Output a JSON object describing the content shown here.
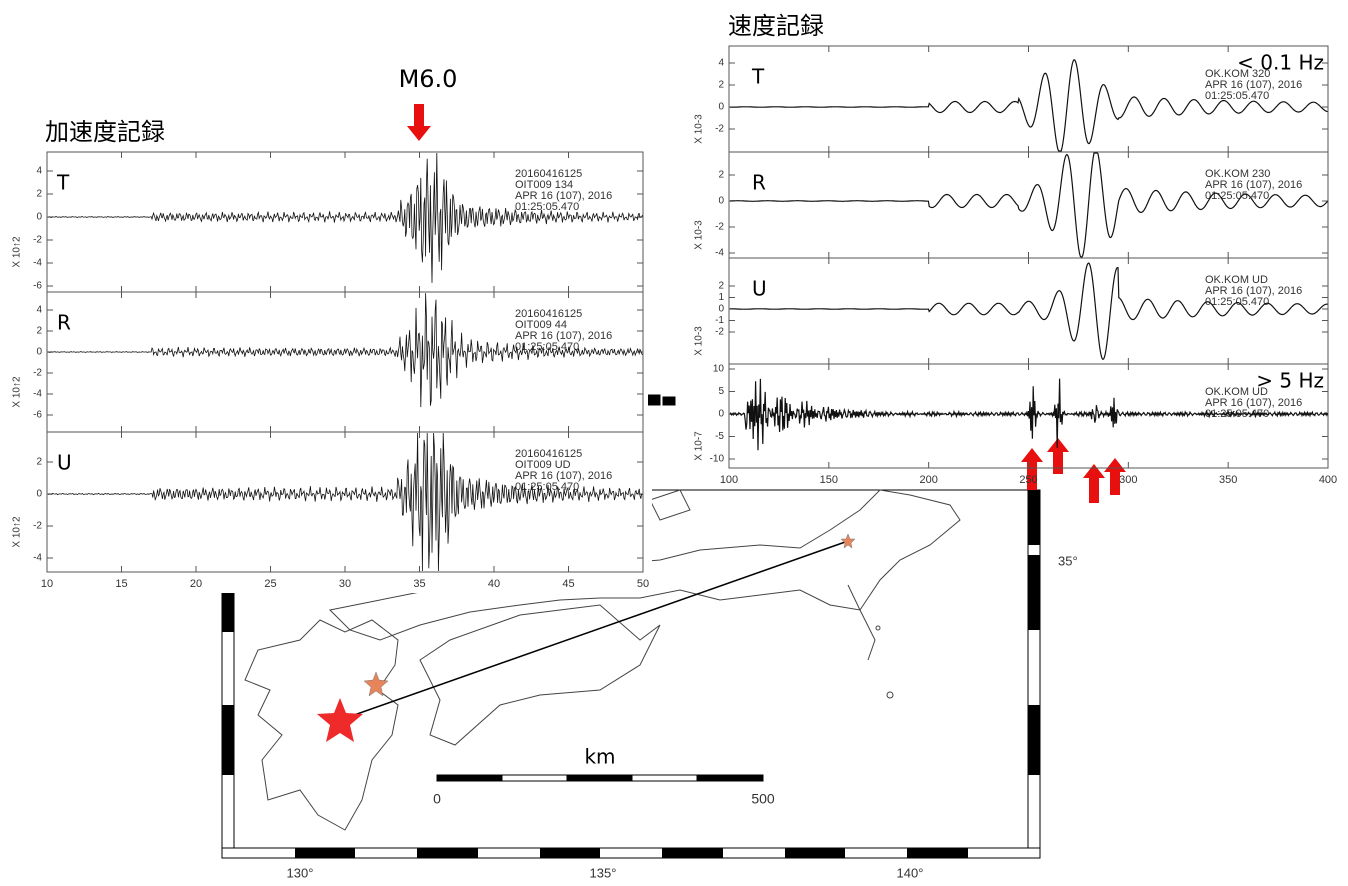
{
  "left_panel": {
    "title": "加速度記録",
    "event_label": "M6.0",
    "xlim": [
      10,
      50
    ],
    "xticks": [
      10,
      15,
      20,
      25,
      30,
      35,
      40,
      45,
      50
    ],
    "traces": [
      {
        "component": "T",
        "scale": "X 10↑2",
        "yticks": [
          4,
          2,
          0,
          -2,
          -4,
          -6
        ],
        "info": [
          "20160416125",
          "OIT009 134",
          "APR 16 (107), 2016",
          "01:25:05.470"
        ]
      },
      {
        "component": "R",
        "scale": "X 10↑2",
        "yticks": [
          4,
          2,
          0,
          -2,
          -4,
          -6
        ],
        "info": [
          "20160416125",
          "OIT009 44",
          "APR 16 (107), 2016",
          "01:25:05.470"
        ]
      },
      {
        "component": "U",
        "scale": "X 10↑2",
        "yticks": [
          2,
          0,
          -2,
          -4
        ],
        "info": [
          "20160416125",
          "OIT009 UD",
          "APR 16 (107), 2016",
          "01:25:05.470"
        ]
      }
    ]
  },
  "right_panel": {
    "title": "速度記録",
    "xlim": [
      100,
      400
    ],
    "xticks": [
      100,
      150,
      200,
      250,
      300,
      350,
      400
    ],
    "traces": [
      {
        "component": "T",
        "band": "< 0.1 Hz",
        "scale": "X 10-3",
        "yticks": [
          4,
          2,
          0,
          -2
        ],
        "info": [
          "OK.KOM 320",
          "APR 16 (107), 2016",
          "01:25:05.470"
        ]
      },
      {
        "component": "R",
        "scale": "X 10-3",
        "yticks": [
          2,
          0,
          -2,
          -4
        ],
        "info": [
          "OK.KOM 230",
          "APR 16 (107), 2016",
          "01:25:05.470"
        ]
      },
      {
        "component": "U",
        "scale": "X 10-3",
        "yticks": [
          2,
          1,
          0,
          -1,
          -2
        ],
        "info": [
          "OK.KOM UD",
          "APR 16 (107), 2016",
          "01:25:05.470"
        ]
      },
      {
        "band": "> 5 Hz",
        "scale": "X 10-7",
        "yticks": [
          10,
          5,
          0,
          -5,
          -10
        ],
        "info": [
          "OK.KOM UD",
          "APR 16 (107), 2016",
          "01:25:05.470"
        ]
      }
    ]
  },
  "map": {
    "lon_labels": [
      "130°",
      "135°",
      "140°"
    ],
    "lat_label": "35°",
    "scale_unit": "km",
    "scale_labels": [
      "0",
      "500"
    ]
  }
}
